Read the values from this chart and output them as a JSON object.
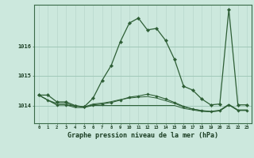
{
  "xlabel_label": "Graphe pression niveau de la mer (hPa)",
  "background_color": "#cce8dd",
  "grid_color_v": "#b8d8cc",
  "grid_color_h": "#a0c8b8",
  "line_color": "#2d5e35",
  "ylim": [
    1013.4,
    1017.4
  ],
  "xlim": [
    -0.5,
    23.5
  ],
  "yticks": [
    1014,
    1015,
    1016
  ],
  "ytick_top_label": "1016",
  "xticks": [
    0,
    1,
    2,
    3,
    4,
    5,
    6,
    7,
    8,
    9,
    10,
    11,
    12,
    13,
    14,
    15,
    16,
    17,
    18,
    19,
    20,
    21,
    22,
    23
  ],
  "series1": [
    1014.35,
    1014.35,
    1014.12,
    1014.12,
    1014.0,
    1013.95,
    1014.25,
    1014.85,
    1015.35,
    1016.15,
    1016.78,
    1016.95,
    1016.55,
    1016.6,
    1016.2,
    1015.55,
    1014.65,
    1014.52,
    1014.22,
    1014.02,
    1014.05,
    1017.25,
    1014.02,
    1014.02
  ],
  "series2": [
    1014.35,
    1014.18,
    1014.02,
    1014.02,
    1013.98,
    1013.95,
    1014.02,
    1014.05,
    1014.1,
    1014.18,
    1014.28,
    1014.32,
    1014.38,
    1014.32,
    1014.22,
    1014.1,
    1013.97,
    1013.88,
    1013.82,
    1013.79,
    1013.82,
    1014.02,
    1013.84,
    1013.84
  ],
  "series3": [
    1014.35,
    1014.18,
    1014.02,
    1014.02,
    1013.93,
    1013.93,
    1014.0,
    1014.0,
    1014.0,
    1014.0,
    1014.0,
    1014.0,
    1014.0,
    1014.0,
    1014.0,
    1014.0,
    1013.9,
    1013.85,
    1013.8,
    1013.79,
    1013.82,
    1014.02,
    1013.83,
    1013.83
  ],
  "series4": [
    1014.35,
    1014.18,
    1014.07,
    1014.07,
    1013.98,
    1013.95,
    1014.05,
    1014.08,
    1014.13,
    1014.2,
    1014.25,
    1014.28,
    1014.3,
    1014.25,
    1014.16,
    1014.07,
    1013.95,
    1013.88,
    1013.83,
    1013.8,
    1013.84,
    1014.04,
    1013.85,
    1013.85
  ]
}
